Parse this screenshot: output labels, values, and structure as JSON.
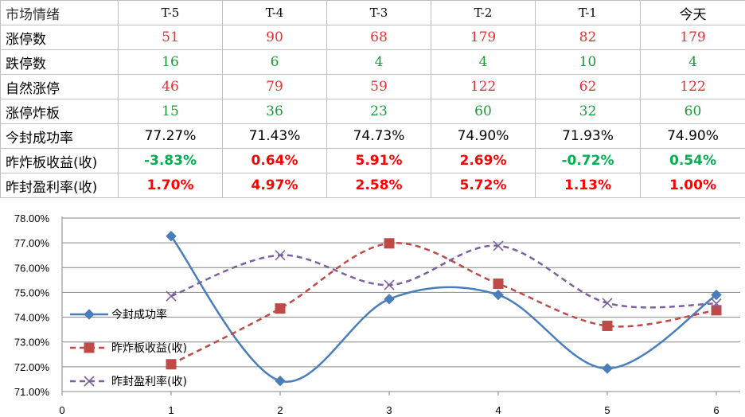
{
  "table": {
    "header": [
      "市场情绪",
      "T-5",
      "T-4",
      "T-3",
      "T-2",
      "T-1",
      "今天"
    ],
    "rows": [
      {
        "label": "涨停数",
        "values": [
          "51",
          "90",
          "68",
          "179",
          "82",
          "179"
        ]
      },
      {
        "label": "跌停数",
        "values": [
          "16",
          "6",
          "4",
          "4",
          "10",
          "4"
        ]
      },
      {
        "label": "自然涨停",
        "values": [
          "46",
          "79",
          "59",
          "122",
          "62",
          "122"
        ]
      },
      {
        "label": "涨停炸板",
        "values": [
          "15",
          "36",
          "23",
          "60",
          "32",
          "60"
        ]
      },
      {
        "label": "今封成功率",
        "values": [
          "77.27%",
          "71.43%",
          "74.73%",
          "74.90%",
          "71.93%",
          "74.90%"
        ]
      },
      {
        "label": "昨炸板收益(收)",
        "values": [
          "-3.83%",
          "0.64%",
          "5.91%",
          "2.69%",
          "-0.72%",
          "0.54%"
        ]
      },
      {
        "label": "昨封盈利率(收)",
        "values": [
          "1.70%",
          "4.97%",
          "2.58%",
          "5.72%",
          "1.13%",
          "1.00%"
        ]
      }
    ],
    "colors": {
      "up": "#e53333",
      "down": "#1e9a3c",
      "bold_up": "#ff0000",
      "bold_down": "#00b050"
    }
  },
  "chart_data": {
    "type": "line",
    "x": [
      1,
      2,
      3,
      4,
      5,
      6
    ],
    "xticks": [
      "0",
      "1",
      "2",
      "3",
      "4",
      "5",
      "6"
    ],
    "xlim": [
      0,
      6
    ],
    "ylim": [
      71,
      78
    ],
    "yticks": [
      "71.00%",
      "72.00%",
      "73.00%",
      "74.00%",
      "75.00%",
      "76.00%",
      "77.00%",
      "78.00%"
    ],
    "grid": true,
    "smooth": true,
    "legend": "left",
    "series": [
      {
        "name": "今封成功率",
        "values": [
          77.27,
          71.43,
          74.73,
          74.9,
          71.93,
          74.9
        ],
        "color": "#4a7ebb",
        "marker": "diamond",
        "dash": "solid"
      },
      {
        "name": "昨炸板收益(收)",
        "values": [
          72.1,
          74.35,
          76.98,
          75.35,
          73.65,
          74.28
        ],
        "color": "#be4b48",
        "marker": "square",
        "dash": "dashed"
      },
      {
        "name": "昨封盈利率(收)",
        "values": [
          74.85,
          76.5,
          75.3,
          76.88,
          74.57,
          74.55
        ],
        "color": "#7d60a0",
        "marker": "x",
        "dash": "dashed"
      }
    ]
  }
}
